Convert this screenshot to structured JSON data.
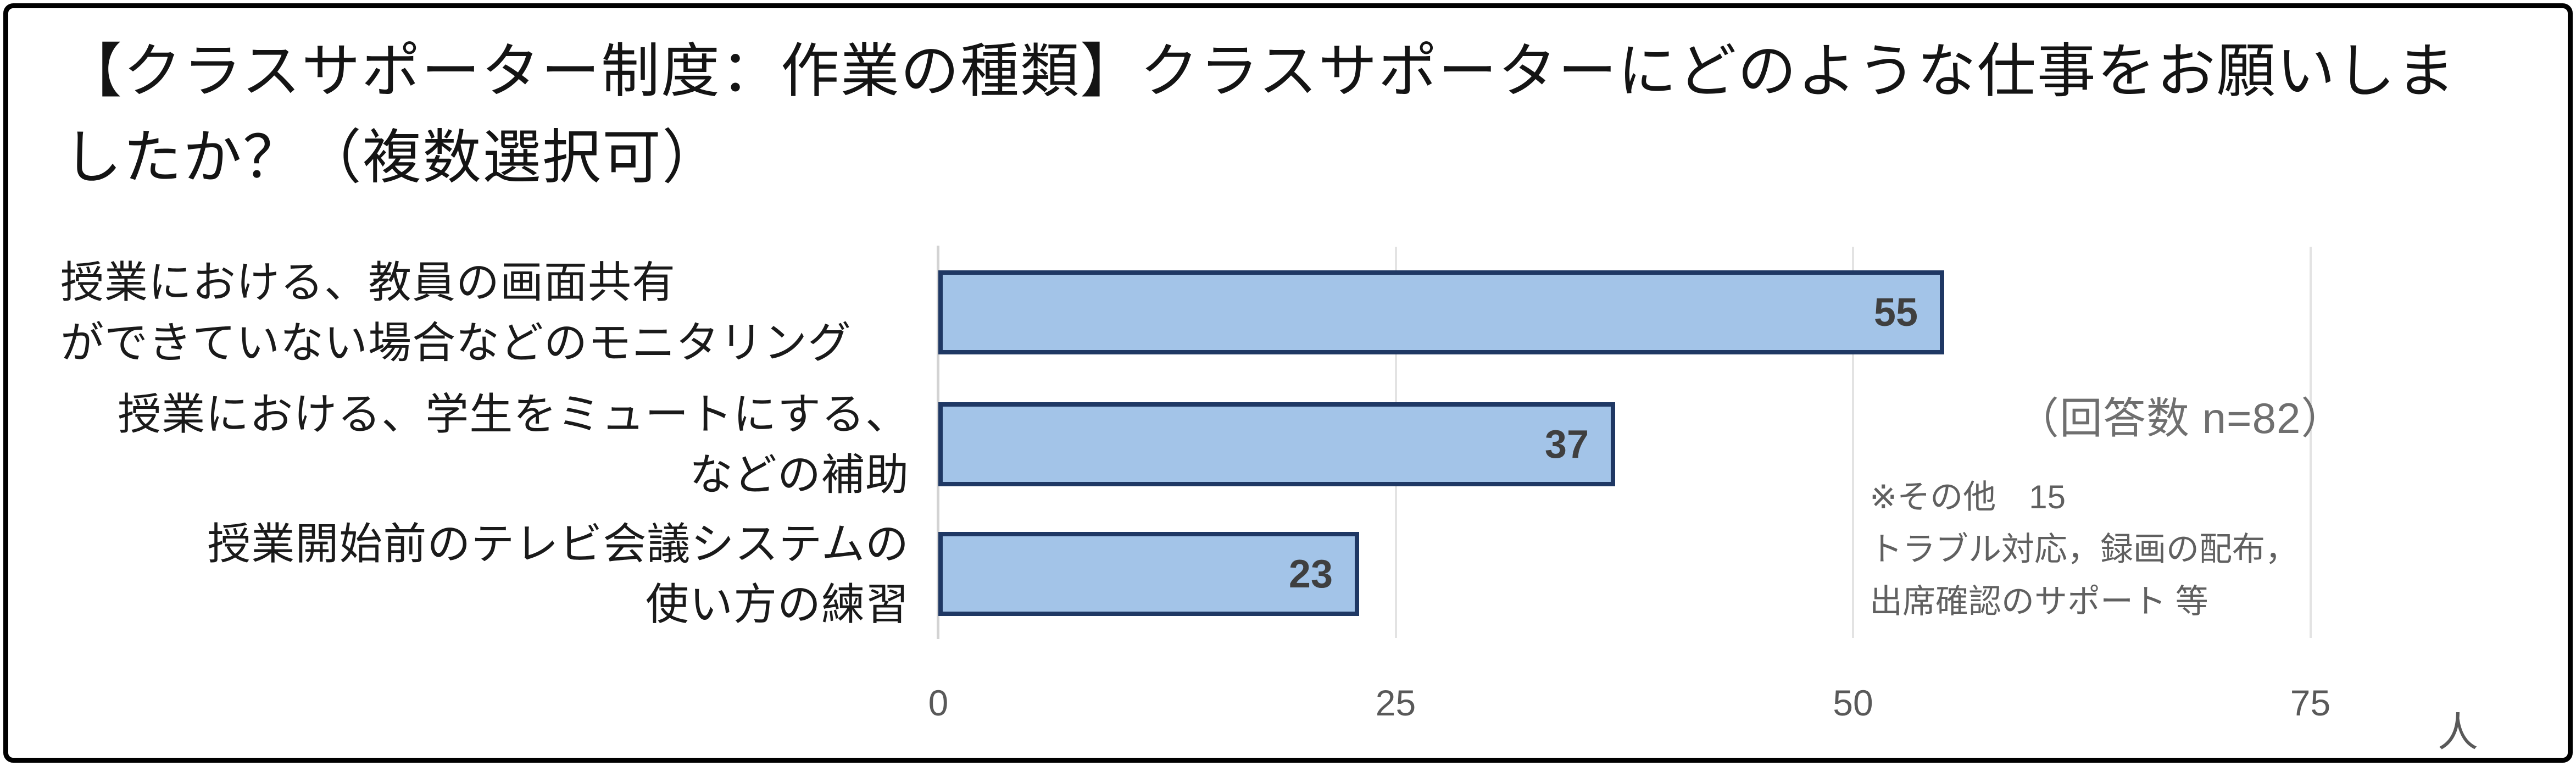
{
  "title": {
    "line1": "【クラスサポーター制度：作業の種類】クラスサポーターにどのような仕事をお願いしま",
    "line2": "したか？（複数選択可）"
  },
  "chart_data": {
    "type": "bar",
    "orientation": "horizontal",
    "title": "【クラスサポーター制度：作業の種類】クラスサポーターにどのような仕事をお願いしましたか？（複数選択可）",
    "categories": [
      "授業における、教員の画面共有ができていない場合などのモニタリング",
      "授業における、学生をミュートにする、などの補助",
      "授業開始前のテレビ会議システムの使い方の練習"
    ],
    "category_lines": [
      [
        "授業における、教員の画面共有",
        "ができていない場合などのモニタリング"
      ],
      [
        "授業における、学生をミュートにする、",
        "などの補助"
      ],
      [
        "授業開始前のテレビ会議システムの",
        "使い方の練習"
      ]
    ],
    "values": [
      55,
      37,
      23
    ],
    "x_ticks": [
      "0",
      "25",
      "50",
      "75"
    ],
    "x_unit": "人",
    "xlim": [
      0,
      84
    ],
    "grid": "vertical-gridlines-on",
    "legend": "none",
    "colors": {
      "bar_fill": "#a3c4e8",
      "bar_border": "#1f3864",
      "value_label": "#3f3f3f",
      "gridline": "#e3e3e3",
      "tick_label": "#595959",
      "annotation_gray": "#6f6f6f"
    },
    "annotations": {
      "response_count": "（回答数 n=82）",
      "other_note_lines": [
        "※その他　15",
        "トラブル対応，録画の配布，",
        "出席確認のサポート 等"
      ]
    }
  }
}
